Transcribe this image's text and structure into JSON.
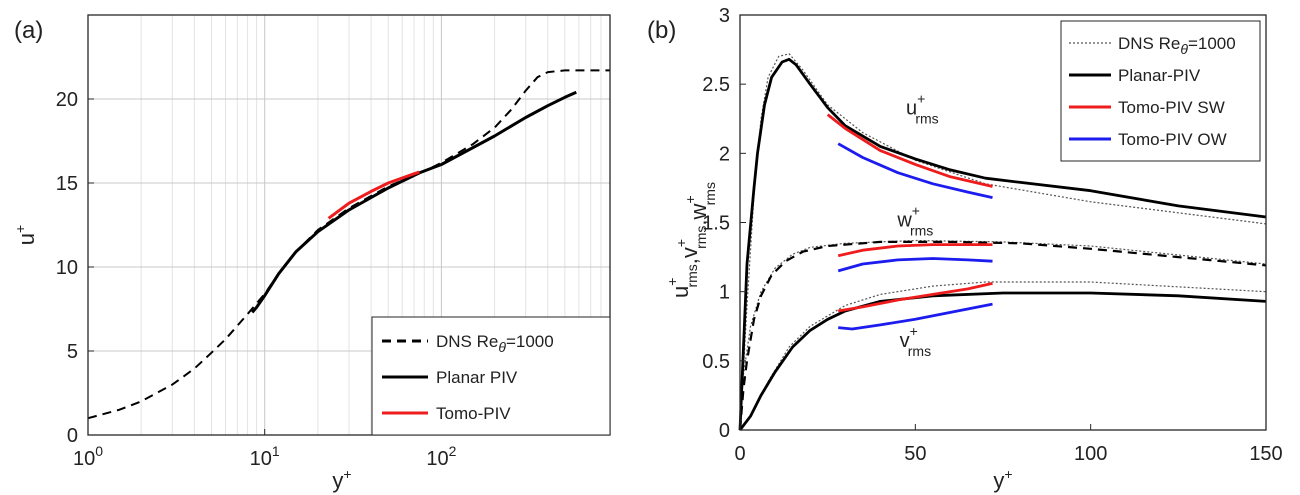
{
  "chart_data": [
    {
      "panel_label": "(a)",
      "type": "line",
      "x_scale": "log",
      "xlim": [
        1,
        900
      ],
      "ylim": [
        0,
        25
      ],
      "xlabel": "y",
      "xlabel_sup": "+",
      "ylabel": "u",
      "ylabel_sup": "+",
      "x_ticks": [
        {
          "value": 1,
          "base": "10",
          "exp": "0"
        },
        {
          "value": 10,
          "base": "10",
          "exp": "1"
        },
        {
          "value": 100,
          "base": "10",
          "exp": "2"
        }
      ],
      "y_ticks": [
        0,
        5,
        10,
        15,
        20
      ],
      "grid": true,
      "legend_position": "bottom-right",
      "legend": [
        {
          "label": "DNS Re",
          "sub": "θ",
          "suffix": "=1000",
          "color": "#000000",
          "style": "dashed"
        },
        {
          "label": "Planar PIV",
          "color": "#000000",
          "style": "solid"
        },
        {
          "label": "Tomo-PIV",
          "color": "#ee1c1c",
          "style": "solid"
        }
      ],
      "series": [
        {
          "color": "#000000",
          "style": "dashed",
          "width": 2,
          "points": [
            [
              1,
              1
            ],
            [
              1.5,
              1.5
            ],
            [
              2,
              2
            ],
            [
              3,
              3
            ],
            [
              4,
              3.95
            ],
            [
              5,
              4.9
            ],
            [
              6,
              5.7
            ],
            [
              7,
              6.5
            ],
            [
              8,
              7.2
            ],
            [
              10,
              8.4
            ],
            [
              12,
              9.6
            ],
            [
              15,
              10.9
            ],
            [
              20,
              12.2
            ],
            [
              30,
              13.5
            ],
            [
              50,
              14.8
            ],
            [
              80,
              15.7
            ],
            [
              100,
              16.2
            ],
            [
              150,
              17.3
            ],
            [
              200,
              18.3
            ],
            [
              250,
              19.4
            ],
            [
              300,
              20.5
            ],
            [
              350,
              21.3
            ],
            [
              400,
              21.6
            ],
            [
              500,
              21.7
            ],
            [
              900,
              21.7
            ]
          ]
        },
        {
          "color": "#000000",
          "style": "solid",
          "width": 3,
          "points": [
            [
              8.5,
              7.3
            ],
            [
              9,
              7.6
            ],
            [
              10,
              8.3
            ],
            [
              12,
              9.6
            ],
            [
              15,
              10.9
            ],
            [
              20,
              12.1
            ],
            [
              30,
              13.4
            ],
            [
              50,
              14.7
            ],
            [
              75,
              15.6
            ],
            [
              100,
              16.1
            ],
            [
              200,
              17.8
            ],
            [
              300,
              18.9
            ],
            [
              400,
              19.6
            ],
            [
              500,
              20.1
            ],
            [
              580,
              20.4
            ]
          ]
        },
        {
          "color": "#ee1c1c",
          "style": "solid",
          "width": 3,
          "points": [
            [
              23,
              12.9
            ],
            [
              30,
              13.8
            ],
            [
              40,
              14.5
            ],
            [
              50,
              15.0
            ],
            [
              60,
              15.3
            ],
            [
              70,
              15.55
            ],
            [
              75,
              15.65
            ]
          ]
        }
      ]
    },
    {
      "panel_label": "(b)",
      "type": "line",
      "xlim": [
        0,
        150
      ],
      "ylim": [
        0,
        3
      ],
      "xlabel": "y",
      "xlabel_sup": "+",
      "ylabel": "u",
      "ylabel_sup": "+",
      "ylabel_sub": "rms",
      "ylabel_parts": [
        {
          "b": "u",
          "sup": "+",
          "sub": "rms"
        },
        {
          "b": "v",
          "sup": "+",
          "sub": "rms"
        },
        {
          "b": "w",
          "sup": "+",
          "sub": "rms"
        }
      ],
      "x_ticks": [
        0,
        50,
        100,
        150
      ],
      "y_ticks": [
        "0",
        "0.5",
        "1",
        "1.5",
        "2",
        "2.5",
        "3"
      ],
      "grid": false,
      "legend_position": "top-right",
      "legend": [
        {
          "label": "DNS Re",
          "sub": "θ",
          "suffix": "=1000",
          "color": "#555555",
          "style": "dotted"
        },
        {
          "label": "Planar-PIV",
          "color": "#000000",
          "style": "solid"
        },
        {
          "label": "Tomo-PIV SW",
          "color": "#ee1c1c",
          "style": "solid"
        },
        {
          "label": "Tomo-PIV OW",
          "color": "#1c1cee",
          "style": "solid"
        }
      ],
      "annotations": [
        {
          "b": "u",
          "sup": "+",
          "sub": "rms",
          "x": 52,
          "y": 2.28
        },
        {
          "b": "w",
          "sup": "+",
          "sub": "rms",
          "x": 50,
          "y": 1.47
        },
        {
          "b": "v",
          "sup": "+",
          "sub": "rms",
          "x": 50,
          "y": 0.6
        }
      ],
      "series": [
        {
          "name_ref": "DNS",
          "color": "#555555",
          "style": "dotted",
          "width": 1.2,
          "points": [
            [
              0,
              0
            ],
            [
              2,
              0.9
            ],
            [
              4,
              1.7
            ],
            [
              6,
              2.25
            ],
            [
              8,
              2.55
            ],
            [
              11,
              2.7
            ],
            [
              14,
              2.72
            ],
            [
              18,
              2.6
            ],
            [
              25,
              2.35
            ],
            [
              35,
              2.15
            ],
            [
              50,
              1.95
            ],
            [
              70,
              1.78
            ],
            [
              100,
              1.65
            ],
            [
              125,
              1.57
            ],
            [
              150,
              1.49
            ]
          ]
        },
        {
          "name_ref": "DNS",
          "color": "#555555",
          "style": "dotted",
          "width": 1.2,
          "points": [
            [
              0,
              0
            ],
            [
              3,
              0.1
            ],
            [
              8,
              0.35
            ],
            [
              14,
              0.6
            ],
            [
              20,
              0.75
            ],
            [
              30,
              0.9
            ],
            [
              40,
              0.98
            ],
            [
              55,
              1.04
            ],
            [
              70,
              1.07
            ],
            [
              100,
              1.07
            ],
            [
              150,
              1.0
            ]
          ]
        },
        {
          "name_ref": "DNS",
          "color": "#555555",
          "style": "dotted",
          "width": 1.2,
          "points": [
            [
              0,
              0.05
            ],
            [
              1,
              0.4
            ],
            [
              3,
              0.75
            ],
            [
              6,
              1.0
            ],
            [
              10,
              1.17
            ],
            [
              15,
              1.27
            ],
            [
              20,
              1.32
            ],
            [
              30,
              1.35
            ],
            [
              50,
              1.37
            ],
            [
              75,
              1.36
            ],
            [
              100,
              1.33
            ],
            [
              150,
              1.2
            ]
          ]
        },
        {
          "name_ref": "Planar-PIV",
          "color": "#000000",
          "style": "solid",
          "width": 2.8,
          "points": [
            [
              0,
              0
            ],
            [
              1,
              0.6
            ],
            [
              2,
              1.2
            ],
            [
              4,
              1.75
            ],
            [
              5,
              2.0
            ],
            [
              7,
              2.35
            ],
            [
              9,
              2.55
            ],
            [
              12,
              2.66
            ],
            [
              14,
              2.68
            ],
            [
              16,
              2.64
            ],
            [
              20,
              2.5
            ],
            [
              25,
              2.33
            ],
            [
              30,
              2.2
            ],
            [
              40,
              2.05
            ],
            [
              50,
              1.96
            ],
            [
              60,
              1.88
            ],
            [
              70,
              1.82
            ],
            [
              80,
              1.79
            ],
            [
              100,
              1.73
            ],
            [
              125,
              1.62
            ],
            [
              150,
              1.54
            ]
          ]
        },
        {
          "name_ref": "Planar-PIV",
          "color": "#000000",
          "style": "solid",
          "width": 2.8,
          "points": [
            [
              0,
              0
            ],
            [
              3,
              0.1
            ],
            [
              6,
              0.25
            ],
            [
              10,
              0.42
            ],
            [
              15,
              0.6
            ],
            [
              20,
              0.72
            ],
            [
              25,
              0.8
            ],
            [
              30,
              0.86
            ],
            [
              40,
              0.93
            ],
            [
              55,
              0.97
            ],
            [
              75,
              0.99
            ],
            [
              100,
              0.99
            ],
            [
              125,
              0.97
            ],
            [
              150,
              0.93
            ]
          ]
        },
        {
          "name_ref": "Planar-PIV",
          "color": "#000000",
          "style": "dashed",
          "width": 2.2,
          "points": [
            [
              0,
              0
            ],
            [
              1,
              0.3
            ],
            [
              2,
              0.5
            ],
            [
              4,
              0.8
            ],
            [
              6,
              0.97
            ],
            [
              9,
              1.12
            ],
            [
              13,
              1.22
            ],
            [
              18,
              1.29
            ],
            [
              25,
              1.33
            ],
            [
              40,
              1.36
            ],
            [
              60,
              1.36
            ],
            [
              80,
              1.35
            ],
            [
              100,
              1.31
            ],
            [
              125,
              1.25
            ],
            [
              150,
              1.19
            ]
          ]
        },
        {
          "name_ref": "Tomo-PIV SW",
          "color": "#ee1c1c",
          "style": "solid",
          "width": 2.8,
          "points": [
            [
              25,
              2.28
            ],
            [
              30,
              2.18
            ],
            [
              40,
              2.02
            ],
            [
              50,
              1.92
            ],
            [
              60,
              1.83
            ],
            [
              72,
              1.76
            ]
          ]
        },
        {
          "name_ref": "Tomo-PIV SW",
          "color": "#ee1c1c",
          "style": "solid",
          "width": 2.8,
          "points": [
            [
              28,
              1.26
            ],
            [
              35,
              1.3
            ],
            [
              45,
              1.33
            ],
            [
              55,
              1.34
            ],
            [
              65,
              1.34
            ],
            [
              72,
              1.34
            ]
          ]
        },
        {
          "name_ref": "Tomo-PIV SW",
          "color": "#ee1c1c",
          "style": "solid",
          "width": 2.8,
          "points": [
            [
              28,
              0.86
            ],
            [
              35,
              0.89
            ],
            [
              45,
              0.94
            ],
            [
              55,
              0.98
            ],
            [
              65,
              1.02
            ],
            [
              72,
              1.06
            ]
          ]
        },
        {
          "name_ref": "Tomo-PIV OW",
          "color": "#1c1cee",
          "style": "solid",
          "width": 2.8,
          "points": [
            [
              28,
              2.07
            ],
            [
              35,
              1.97
            ],
            [
              45,
              1.86
            ],
            [
              55,
              1.78
            ],
            [
              65,
              1.72
            ],
            [
              72,
              1.68
            ]
          ]
        },
        {
          "name_ref": "Tomo-PIV OW",
          "color": "#1c1cee",
          "style": "solid",
          "width": 2.8,
          "points": [
            [
              28,
              1.15
            ],
            [
              35,
              1.2
            ],
            [
              45,
              1.23
            ],
            [
              55,
              1.24
            ],
            [
              65,
              1.23
            ],
            [
              72,
              1.22
            ]
          ]
        },
        {
          "name_ref": "Tomo-PIV OW",
          "color": "#1c1cee",
          "style": "solid",
          "width": 2.8,
          "points": [
            [
              28,
              0.74
            ],
            [
              32,
              0.73
            ],
            [
              40,
              0.76
            ],
            [
              50,
              0.8
            ],
            [
              60,
              0.85
            ],
            [
              72,
              0.91
            ]
          ]
        }
      ]
    }
  ]
}
